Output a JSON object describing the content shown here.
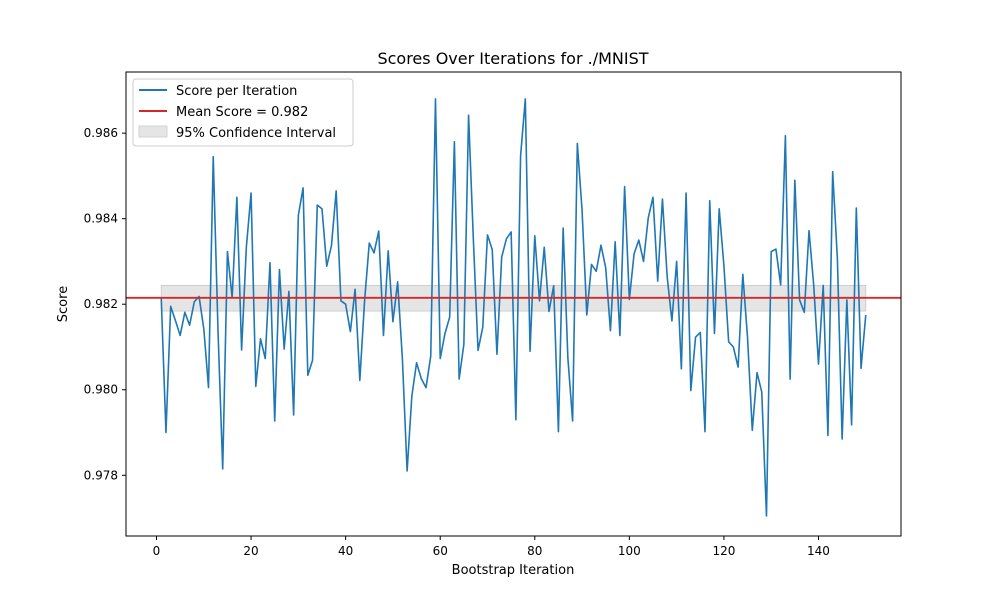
{
  "chart_data": {
    "type": "line",
    "title": "Scores Over Iterations for ./MNIST",
    "xlabel": "Bootstrap Iteration",
    "ylabel": "Score",
    "xlim": [
      -6.45,
      157.45
    ],
    "ylim": [
      0.97658,
      0.98743
    ],
    "xticks": [
      0,
      20,
      40,
      60,
      80,
      100,
      120,
      140
    ],
    "yticks": [
      0.978,
      0.98,
      0.982,
      0.984,
      0.986
    ],
    "ytick_labels": [
      "0.978",
      "0.980",
      "0.982",
      "0.984",
      "0.986"
    ],
    "grid": false,
    "legend_position": "top-left",
    "series": [
      {
        "name": "Score per Iteration",
        "color": "#1f77b4",
        "x": [
          1,
          2,
          3,
          4,
          5,
          6,
          7,
          8,
          9,
          10,
          11,
          12,
          13,
          14,
          15,
          16,
          17,
          18,
          19,
          20,
          21,
          22,
          23,
          24,
          25,
          26,
          27,
          28,
          29,
          30,
          31,
          32,
          33,
          34,
          35,
          36,
          37,
          38,
          39,
          40,
          41,
          42,
          43,
          44,
          45,
          46,
          47,
          48,
          49,
          50,
          51,
          52,
          53,
          54,
          55,
          56,
          57,
          58,
          59,
          60,
          61,
          62,
          63,
          64,
          65,
          66,
          67,
          68,
          69,
          70,
          71,
          72,
          73,
          74,
          75,
          76,
          77,
          78,
          79,
          80,
          81,
          82,
          83,
          84,
          85,
          86,
          87,
          88,
          89,
          90,
          91,
          92,
          93,
          94,
          95,
          96,
          97,
          98,
          99,
          100,
          101,
          102,
          103,
          104,
          105,
          106,
          107,
          108,
          109,
          110,
          111,
          112,
          113,
          114,
          115,
          116,
          117,
          118,
          119,
          120,
          121,
          122,
          123,
          124,
          125,
          126,
          127,
          128,
          129,
          130,
          131,
          132,
          133,
          134,
          135,
          136,
          137,
          138,
          139,
          140,
          141,
          142,
          143,
          144,
          145,
          146,
          147,
          148,
          149,
          150
        ],
        "y": [
          0.98215,
          0.979,
          0.98195,
          0.98162,
          0.98127,
          0.98181,
          0.98151,
          0.98206,
          0.98218,
          0.98143,
          0.98005,
          0.98545,
          0.9814,
          0.97815,
          0.98323,
          0.98215,
          0.9845,
          0.98093,
          0.98333,
          0.9846,
          0.98008,
          0.98119,
          0.98073,
          0.98297,
          0.97927,
          0.98281,
          0.98095,
          0.9823,
          0.97941,
          0.98408,
          0.98472,
          0.98034,
          0.98069,
          0.98432,
          0.98423,
          0.98289,
          0.98337,
          0.98465,
          0.98208,
          0.982,
          0.98136,
          0.98235,
          0.98022,
          0.98207,
          0.98343,
          0.9832,
          0.98371,
          0.98127,
          0.98325,
          0.98159,
          0.98252,
          0.98073,
          0.9781,
          0.97985,
          0.98063,
          0.98026,
          0.98005,
          0.98079,
          0.9868,
          0.98073,
          0.98131,
          0.9817,
          0.9858,
          0.98025,
          0.98106,
          0.98642,
          0.98354,
          0.98092,
          0.98146,
          0.98362,
          0.98328,
          0.98083,
          0.9831,
          0.98353,
          0.98369,
          0.9793,
          0.98547,
          0.9868,
          0.9809,
          0.9836,
          0.98208,
          0.98333,
          0.98183,
          0.98243,
          0.97902,
          0.98378,
          0.98074,
          0.97927,
          0.98576,
          0.9842,
          0.98175,
          0.98293,
          0.98277,
          0.98338,
          0.98285,
          0.98138,
          0.98346,
          0.98127,
          0.98475,
          0.98211,
          0.98318,
          0.9835,
          0.983,
          0.98402,
          0.9845,
          0.98254,
          0.98446,
          0.98264,
          0.98161,
          0.983,
          0.98049,
          0.9846,
          0.97998,
          0.98123,
          0.98134,
          0.97902,
          0.98442,
          0.98132,
          0.98423,
          0.9829,
          0.98112,
          0.981,
          0.98053,
          0.9827,
          0.98121,
          0.97905,
          0.9804,
          0.97995,
          0.97705,
          0.98323,
          0.98329,
          0.98245,
          0.98594,
          0.98025,
          0.9849,
          0.9821,
          0.98181,
          0.98372,
          0.98243,
          0.9806,
          0.98244,
          0.97893,
          0.9851,
          0.98306,
          0.97885,
          0.9821,
          0.97918,
          0.98425,
          0.9805,
          0.98175
        ]
      },
      {
        "name": "Mean Score = 0.982",
        "color": "#d62728",
        "kind": "hline",
        "y": 0.98215
      },
      {
        "name": "95% Confidence Interval",
        "color": "#e5e5e5",
        "kind": "band",
        "x_range": [
          1,
          150
        ],
        "y_range": [
          0.98184,
          0.98244
        ]
      }
    ]
  }
}
